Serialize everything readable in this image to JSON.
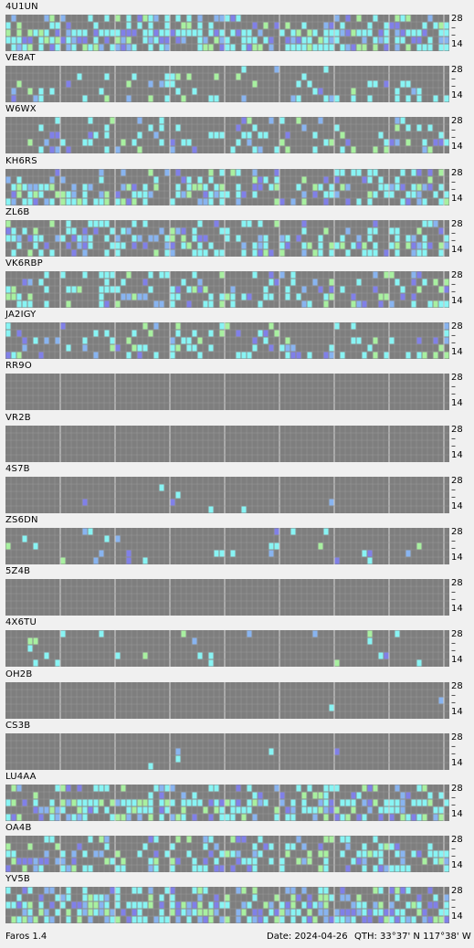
{
  "app": {
    "version_label": "Faros 1.4",
    "date_label": "Date: 2024-04-26",
    "qth_label": "QTH: 33°37' N  117°38' W"
  },
  "band_labels": {
    "top": "28",
    "mid": "–",
    "bottom": "14"
  },
  "colors": {
    "grid_bg": "#7e7e7e",
    "grid_line": "#999999",
    "hour_divider": "#c8c8c8",
    "strong_green": "#a8f0a0",
    "mid_cyan": "#88f4f4",
    "weak_blue": "#88b4f0",
    "dim_violet": "#8080e8"
  },
  "beacons": [
    {
      "callsign": "4U1UN",
      "intensity": 0.55,
      "seed": 11
    },
    {
      "callsign": "VE8AT",
      "intensity": 0.16,
      "seed": 23
    },
    {
      "callsign": "W6WX",
      "intensity": 0.22,
      "seed": 37
    },
    {
      "callsign": "KH6RS",
      "intensity": 0.45,
      "seed": 41
    },
    {
      "callsign": "ZL6B",
      "intensity": 0.38,
      "seed": 53
    },
    {
      "callsign": "VK6RBP",
      "intensity": 0.28,
      "seed": 67
    },
    {
      "callsign": "JA2IGY",
      "intensity": 0.22,
      "seed": 71
    },
    {
      "callsign": "RR9O",
      "intensity": 0.0,
      "seed": 83
    },
    {
      "callsign": "VR2B",
      "intensity": 0.0,
      "seed": 97
    },
    {
      "callsign": "4S7B",
      "intensity": 0.01,
      "seed": 101
    },
    {
      "callsign": "ZS6DN",
      "intensity": 0.08,
      "seed": 113
    },
    {
      "callsign": "5Z4B",
      "intensity": 0.01,
      "seed": 127
    },
    {
      "callsign": "4X6TU",
      "intensity": 0.06,
      "seed": 131
    },
    {
      "callsign": "OH2B",
      "intensity": 0.01,
      "seed": 139
    },
    {
      "callsign": "CS3B",
      "intensity": 0.01,
      "seed": 149
    },
    {
      "callsign": "LU4AA",
      "intensity": 0.45,
      "seed": 157
    },
    {
      "callsign": "OA4B",
      "intensity": 0.35,
      "seed": 163
    },
    {
      "callsign": "YV5B",
      "intensity": 0.55,
      "seed": 173
    }
  ]
}
